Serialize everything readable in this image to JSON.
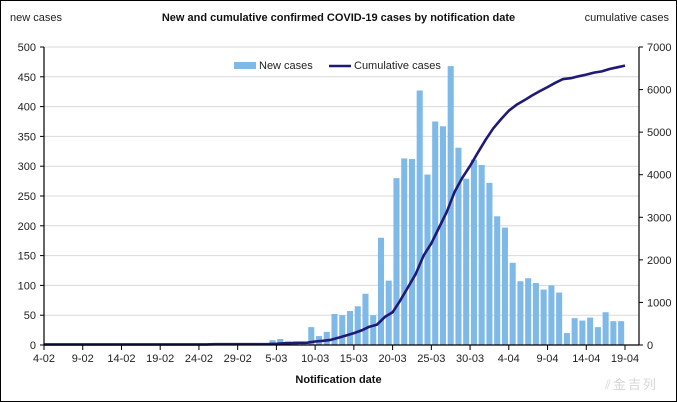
{
  "chart_data": {
    "type": "bar",
    "title": "New and cumulative confirmed COVID-19 cases by notification date",
    "xlabel": "Notification date",
    "ylabel_left": "new cases",
    "ylabel_right": "cumulative cases",
    "ylim_left": [
      0,
      500
    ],
    "ylim_right": [
      0,
      7000
    ],
    "yticks_left": [
      "0",
      "50",
      "100",
      "150",
      "200",
      "250",
      "300",
      "350",
      "400",
      "450",
      "500"
    ],
    "yticks_right": [
      "0",
      "1000",
      "2000",
      "3000",
      "4000",
      "5000",
      "6000",
      "7000"
    ],
    "xticks": [
      "4-02",
      "9-02",
      "14-02",
      "19-02",
      "24-02",
      "29-02",
      "5-03",
      "10-03",
      "15-03",
      "20-03",
      "25-03",
      "30-03",
      "4-04",
      "9-04",
      "14-04",
      "19-04"
    ],
    "grid": true,
    "legend_position": "top-center",
    "colors": {
      "bar": "#7fb9e8",
      "line": "#1f1a78",
      "grid": "#d9d9d9"
    },
    "series": [
      {
        "name": "New cases",
        "kind": "bar",
        "axis": "left",
        "values": [
          0,
          0,
          0,
          0,
          0,
          0,
          0,
          0,
          0,
          0,
          0,
          0,
          0,
          0,
          0,
          0,
          0,
          0,
          0,
          0,
          0,
          3,
          0,
          0,
          0,
          0,
          0,
          1,
          2,
          8,
          10,
          6,
          6,
          2,
          30,
          15,
          22,
          52,
          50,
          57,
          65,
          86,
          50,
          180,
          108,
          280,
          313,
          312,
          427,
          286,
          375,
          367,
          468,
          331,
          279,
          311,
          302,
          272,
          216,
          197,
          138,
          107,
          112,
          104,
          93,
          100,
          88,
          20,
          45,
          41,
          46,
          30,
          55,
          40,
          40
        ]
      },
      {
        "name": "Cumulative cases",
        "kind": "line",
        "axis": "right",
        "values": [
          15,
          15,
          15,
          15,
          15,
          15,
          15,
          15,
          15,
          15,
          15,
          15,
          15,
          15,
          15,
          15,
          15,
          15,
          15,
          15,
          15,
          18,
          18,
          18,
          18,
          18,
          18,
          19,
          21,
          29,
          39,
          45,
          51,
          53,
          83,
          98,
          120,
          172,
          222,
          279,
          344,
          430,
          480,
          660,
          768,
          1048,
          1361,
          1673,
          2100,
          2386,
          2761,
          3128,
          3596,
          3927,
          4206,
          4517,
          4819,
          5091,
          5307,
          5504,
          5642,
          5749,
          5861,
          5965,
          6058,
          6158,
          6246,
          6266,
          6311,
          6352,
          6398,
          6428,
          6483,
          6523,
          6563
        ]
      }
    ],
    "dates": [
      "5-02",
      "6-02",
      "7-02",
      "8-02",
      "9-02",
      "10-02",
      "11-02",
      "12-02",
      "13-02",
      "14-02",
      "15-02",
      "16-02",
      "17-02",
      "18-02",
      "19-02",
      "20-02",
      "21-02",
      "22-02",
      "23-02",
      "24-02",
      "25-02",
      "26-02",
      "27-02",
      "28-02",
      "29-02",
      "1-03",
      "2-03",
      "3-03",
      "4-03",
      "5-03",
      "6-03",
      "7-03",
      "8-03",
      "9-03",
      "10-03",
      "11-03",
      "12-03",
      "13-03",
      "14-03",
      "15-03",
      "16-03",
      "17-03",
      "18-03",
      "19-03",
      "20-03",
      "21-03",
      "22-03",
      "23-03",
      "24-03",
      "25-03",
      "26-03",
      "27-03",
      "28-03",
      "29-03",
      "30-03",
      "31-03",
      "1-04",
      "2-04",
      "3-04",
      "4-04",
      "5-04",
      "6-04",
      "7-04",
      "8-04",
      "9-04",
      "10-04",
      "11-04",
      "12-04",
      "13-04",
      "14-04",
      "15-04",
      "16-04",
      "17-04",
      "18-04",
      "19-04"
    ]
  },
  "watermark": "金吉列"
}
